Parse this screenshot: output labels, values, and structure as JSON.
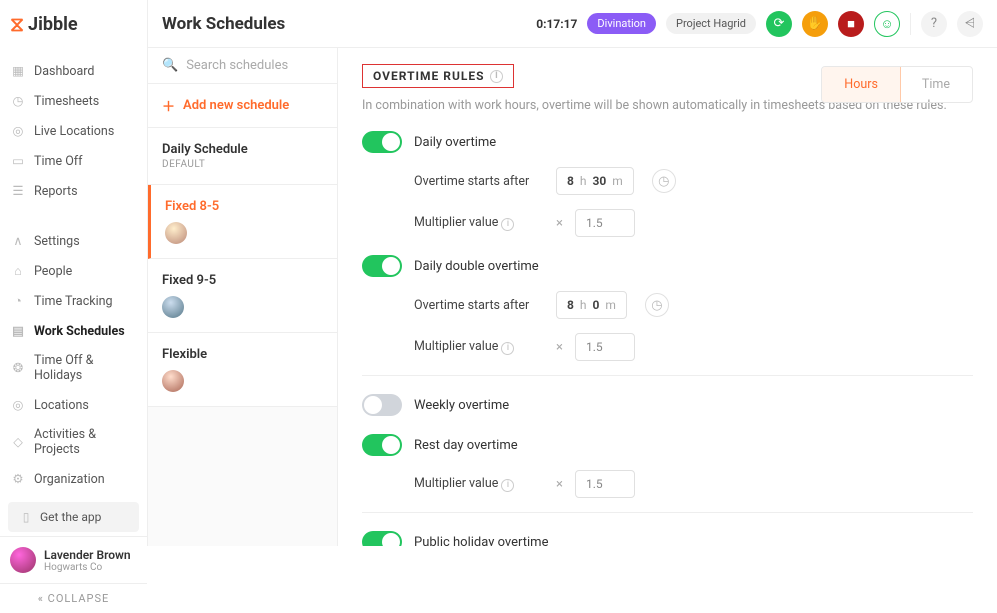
{
  "brand": "Jibble",
  "page_title": "Work Schedules",
  "timer": "0:17:17",
  "pills": {
    "project1": "Divination",
    "project2": "Project Hagrid"
  },
  "nav": {
    "top": [
      {
        "label": "Dashboard"
      },
      {
        "label": "Timesheets"
      },
      {
        "label": "Live Locations"
      },
      {
        "label": "Time Off"
      },
      {
        "label": "Reports"
      }
    ],
    "bottom": [
      {
        "label": "Settings"
      },
      {
        "label": "People"
      },
      {
        "label": "Time Tracking"
      },
      {
        "label": "Work Schedules",
        "active": true
      },
      {
        "label": "Time Off & Holidays"
      },
      {
        "label": "Locations"
      },
      {
        "label": "Activities & Projects"
      },
      {
        "label": "Organization"
      }
    ],
    "get_app": "Get the app",
    "collapse": "COLLAPSE"
  },
  "user": {
    "name": "Lavender Brown",
    "company": "Hogwarts Co"
  },
  "schedules": {
    "search_placeholder": "Search schedules",
    "add_label": "Add new schedule",
    "items": [
      {
        "title": "Daily Schedule",
        "sub": "DEFAULT"
      },
      {
        "title": "Fixed 8-5",
        "active": true
      },
      {
        "title": "Fixed 9-5"
      },
      {
        "title": "Flexible"
      }
    ]
  },
  "rules": {
    "section_title": "OVERTIME RULES",
    "section_desc": "In combination with work hours, overtime will be shown automatically in timesheets based on these rules.",
    "tabs": {
      "hours": "Hours",
      "time": "Time"
    },
    "labels": {
      "daily_ot": "Daily overtime",
      "daily_double": "Daily double overtime",
      "weekly_ot": "Weekly overtime",
      "restday_ot": "Rest day overtime",
      "public_holiday": "Public holiday overtime",
      "starts_after": "Overtime starts after",
      "multiplier": "Multiplier value"
    },
    "daily": {
      "h": "8",
      "m": "30",
      "mult": "1.5"
    },
    "double": {
      "h": "8",
      "m": "0",
      "mult": "1.5"
    },
    "restday": {
      "mult": "1.5"
    },
    "units": {
      "h": "h",
      "m": "m"
    }
  }
}
